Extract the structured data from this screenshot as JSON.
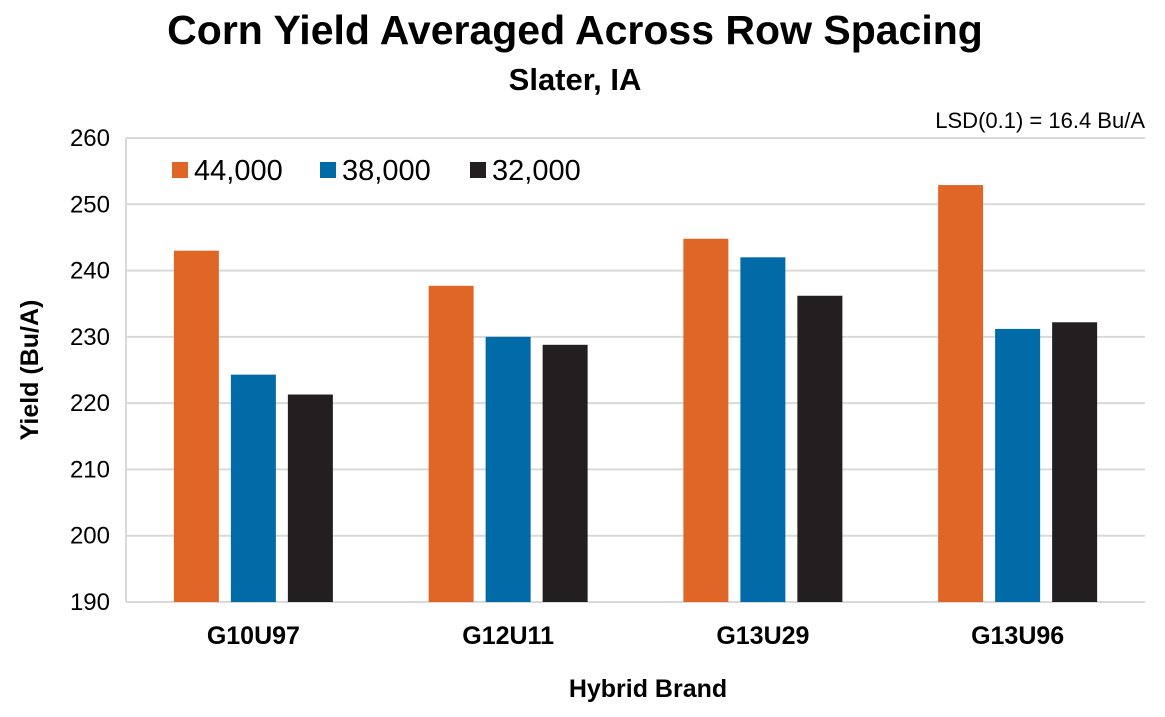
{
  "chart_data": {
    "type": "bar",
    "title": "Corn Yield Averaged Across Row Spacing",
    "subtitle": "Slater, IA",
    "annotation": "LSD(0.1) = 16.4 Bu/A",
    "xlabel": "Hybrid Brand",
    "ylabel": "Yield (Bu/A)",
    "ylim": [
      190,
      260
    ],
    "yticks": [
      190,
      200,
      210,
      220,
      230,
      240,
      250,
      260
    ],
    "grid": true,
    "legend_position": "top-left",
    "categories": [
      "G10U97",
      "G12U11",
      "G13U29",
      "G13U96"
    ],
    "series": [
      {
        "name": "44,000",
        "color": "#e06628",
        "values": [
          243.0,
          237.7,
          244.8,
          252.9
        ]
      },
      {
        "name": "38,000",
        "color": "#006ba6",
        "values": [
          224.3,
          230.0,
          242.0,
          231.2
        ]
      },
      {
        "name": "32,000",
        "color": "#231f20",
        "values": [
          221.3,
          228.8,
          236.2,
          232.2
        ]
      }
    ]
  }
}
